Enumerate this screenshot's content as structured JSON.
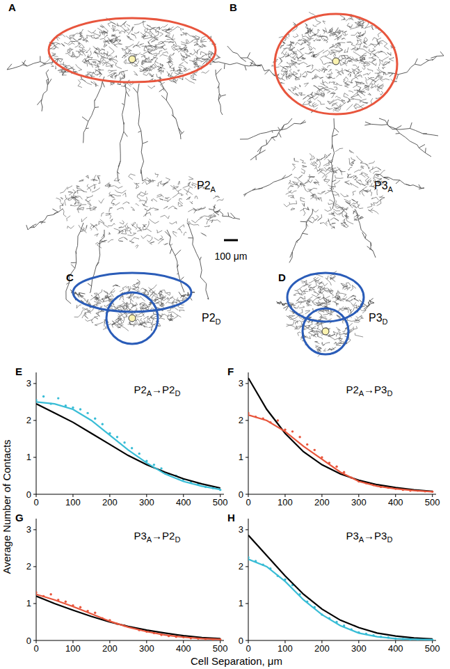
{
  "figure": {
    "xlabel": "Cell Separation, μm",
    "ylabel": "Average Number of Contacts",
    "scale_bar": "100 μm",
    "drawings": [
      {
        "panel": "A",
        "label": "P2A"
      },
      {
        "panel": "B",
        "label": "P3A"
      },
      {
        "panel": "C",
        "label": "P2D"
      },
      {
        "panel": "D",
        "label": "P3D"
      }
    ]
  },
  "chart_data": [
    {
      "type": "scatter",
      "panel": "E",
      "title": "P2A→P2D",
      "xlim": [
        0,
        510
      ],
      "ylim": [
        0,
        3.3
      ],
      "xticks": [
        0,
        100,
        200,
        300,
        400,
        500
      ],
      "yticks": [
        0,
        1,
        2,
        3
      ],
      "series": [
        {
          "type": "scatter",
          "marker": "dot",
          "color": "#39bdd6",
          "x": [
            0,
            20,
            40,
            60,
            80,
            100,
            120,
            140,
            160,
            180,
            200,
            220,
            240,
            260,
            280,
            300,
            320,
            340,
            360,
            380,
            400,
            420,
            440,
            460,
            480,
            500
          ],
          "values": [
            2.55,
            2.65,
            2.45,
            2.6,
            2.4,
            2.35,
            2.3,
            2.2,
            2.05,
            1.9,
            1.65,
            1.55,
            1.4,
            1.25,
            1.1,
            0.9,
            0.8,
            0.7,
            0.55,
            0.5,
            0.4,
            0.32,
            0.28,
            0.2,
            0.17,
            0.12
          ]
        },
        {
          "type": "line",
          "color": "#000000",
          "x": [
            0,
            50,
            100,
            150,
            200,
            250,
            300,
            350,
            400,
            450,
            500
          ],
          "values": [
            2.45,
            2.2,
            1.95,
            1.65,
            1.35,
            1.05,
            0.8,
            0.6,
            0.42,
            0.28,
            0.17
          ]
        },
        {
          "type": "line",
          "color": "#39bdd6",
          "x": [
            0,
            50,
            100,
            150,
            200,
            250,
            300,
            350,
            400,
            450,
            500
          ],
          "values": [
            2.5,
            2.45,
            2.3,
            2.0,
            1.6,
            1.2,
            0.85,
            0.55,
            0.35,
            0.22,
            0.13
          ]
        }
      ]
    },
    {
      "type": "scatter",
      "panel": "F",
      "title": "P2A→P3D",
      "xlim": [
        0,
        510
      ],
      "ylim": [
        0,
        3.3
      ],
      "xticks": [
        0,
        100,
        200,
        300,
        400,
        500
      ],
      "yticks": [
        0,
        1,
        2,
        3
      ],
      "series": [
        {
          "type": "scatter",
          "marker": "dot",
          "color": "#e8563c",
          "x": [
            0,
            20,
            40,
            60,
            80,
            100,
            120,
            140,
            160,
            180,
            200,
            220,
            240,
            260,
            280,
            300,
            320,
            340,
            360,
            380,
            400,
            420,
            440,
            460,
            480,
            500
          ],
          "values": [
            2.2,
            2.1,
            2.05,
            1.95,
            2.0,
            1.75,
            1.7,
            1.55,
            1.35,
            1.2,
            1.0,
            0.85,
            0.75,
            0.6,
            0.45,
            0.35,
            0.3,
            0.25,
            0.2,
            0.18,
            0.15,
            0.12,
            0.1,
            0.1,
            0.08,
            0.07
          ]
        },
        {
          "type": "line",
          "color": "#000000",
          "x": [
            0,
            50,
            100,
            150,
            200,
            250,
            300,
            350,
            400,
            450,
            500
          ],
          "values": [
            3.15,
            2.3,
            1.65,
            1.15,
            0.8,
            0.55,
            0.38,
            0.26,
            0.18,
            0.12,
            0.08
          ]
        },
        {
          "type": "line",
          "color": "#e8563c",
          "x": [
            0,
            50,
            100,
            150,
            200,
            250,
            300,
            350,
            400,
            450,
            500
          ],
          "values": [
            2.15,
            2.0,
            1.7,
            1.3,
            0.95,
            0.6,
            0.35,
            0.22,
            0.15,
            0.1,
            0.07
          ]
        }
      ]
    },
    {
      "type": "scatter",
      "panel": "G",
      "title": "P3A→P2D",
      "xlim": [
        0,
        510
      ],
      "ylim": [
        0,
        3.3
      ],
      "xticks": [
        0,
        100,
        200,
        300,
        400,
        500
      ],
      "yticks": [
        0,
        1,
        2,
        3
      ],
      "series": [
        {
          "type": "scatter",
          "marker": "dot",
          "color": "#e8563c",
          "x": [
            0,
            20,
            40,
            60,
            80,
            100,
            120,
            140,
            160,
            180,
            200,
            220,
            240,
            260,
            280,
            300,
            320,
            340,
            360,
            380,
            400,
            420,
            440,
            460,
            480,
            500
          ],
          "values": [
            1.3,
            1.2,
            1.25,
            1.1,
            1.05,
            0.95,
            0.9,
            0.8,
            0.75,
            0.6,
            0.55,
            0.45,
            0.4,
            0.35,
            0.28,
            0.24,
            0.2,
            0.15,
            0.12,
            0.1,
            0.09,
            0.06,
            0.05,
            0.04,
            0.03,
            0.03
          ]
        },
        {
          "type": "line",
          "color": "#000000",
          "x": [
            0,
            50,
            100,
            150,
            200,
            250,
            300,
            350,
            400,
            450,
            500
          ],
          "values": [
            1.2,
            1.0,
            0.82,
            0.65,
            0.5,
            0.38,
            0.28,
            0.2,
            0.13,
            0.08,
            0.05
          ]
        },
        {
          "type": "line",
          "color": "#e8563c",
          "x": [
            0,
            50,
            100,
            150,
            200,
            250,
            300,
            350,
            400,
            450,
            500
          ],
          "values": [
            1.25,
            1.1,
            0.92,
            0.72,
            0.52,
            0.36,
            0.24,
            0.15,
            0.09,
            0.05,
            0.03
          ]
        }
      ]
    },
    {
      "type": "scatter",
      "panel": "H",
      "title": "P3A→P3D",
      "xlim": [
        0,
        510
      ],
      "ylim": [
        0,
        3.3
      ],
      "xticks": [
        0,
        100,
        200,
        300,
        400,
        500
      ],
      "yticks": [
        0,
        1,
        2,
        3
      ],
      "series": [
        {
          "type": "scatter",
          "marker": "dot",
          "color": "#39bdd6",
          "x": [
            0,
            20,
            40,
            60,
            80,
            100,
            120,
            140,
            160,
            180,
            200,
            220,
            240,
            260,
            280,
            300,
            320,
            340,
            360,
            380,
            400,
            420,
            440,
            460,
            480,
            500
          ],
          "values": [
            2.25,
            2.15,
            2.05,
            1.95,
            1.75,
            1.65,
            1.5,
            1.25,
            1.05,
            0.9,
            0.7,
            0.6,
            0.5,
            0.4,
            0.3,
            0.22,
            0.18,
            0.14,
            0.1,
            0.08,
            0.05,
            0.04,
            0.03,
            0.03,
            0.02,
            0.02
          ]
        },
        {
          "type": "line",
          "color": "#000000",
          "x": [
            0,
            50,
            100,
            150,
            200,
            250,
            300,
            350,
            400,
            450,
            500
          ],
          "values": [
            2.85,
            2.3,
            1.75,
            1.25,
            0.85,
            0.55,
            0.35,
            0.2,
            0.12,
            0.07,
            0.04
          ]
        },
        {
          "type": "line",
          "color": "#39bdd6",
          "x": [
            0,
            50,
            100,
            150,
            200,
            250,
            300,
            350,
            400,
            450,
            500
          ],
          "values": [
            2.2,
            2.0,
            1.6,
            1.1,
            0.7,
            0.4,
            0.2,
            0.1,
            0.05,
            0.03,
            0.02
          ]
        }
      ]
    }
  ]
}
